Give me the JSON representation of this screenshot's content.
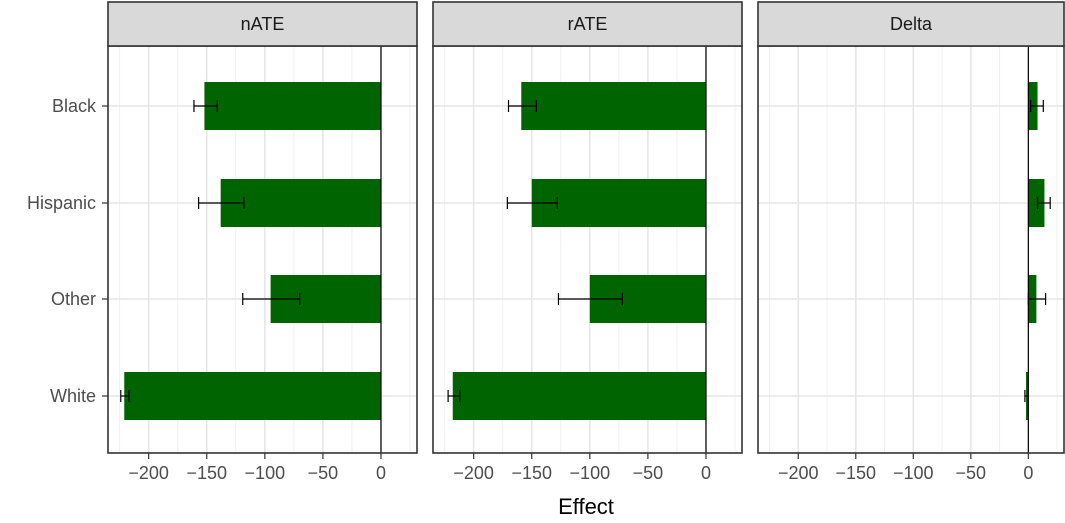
{
  "chart_data": {
    "type": "bar",
    "orientation": "horizontal",
    "layout": "faceted",
    "categories": [
      "Black",
      "Hispanic",
      "Other",
      "White"
    ],
    "facets": [
      {
        "name": "nATE",
        "values": [
          -152,
          -138,
          -95,
          -221
        ],
        "error_low": [
          -161,
          -157,
          -119,
          -224
        ],
        "error_high": [
          -141,
          -118,
          -70,
          -217
        ]
      },
      {
        "name": "rATE",
        "values": [
          -159,
          -150,
          -100,
          -218
        ],
        "error_low": [
          -170,
          -171,
          -127,
          -222
        ],
        "error_high": [
          -146,
          -128,
          -72,
          -212
        ]
      },
      {
        "name": "Delta",
        "values": [
          8,
          14,
          7,
          -2
        ],
        "error_low": [
          2,
          8,
          0,
          -3
        ],
        "error_high": [
          13,
          19,
          15,
          0
        ]
      }
    ],
    "xlabel": "Effect",
    "ylabel": "",
    "xticks": [
      -200,
      -150,
      -100,
      -50,
      0
    ],
    "xlim": [
      -235,
      31
    ],
    "grid": true,
    "bar_color": "#006400",
    "strip_color": "#d9d9d9",
    "reference_line_at": 0
  }
}
